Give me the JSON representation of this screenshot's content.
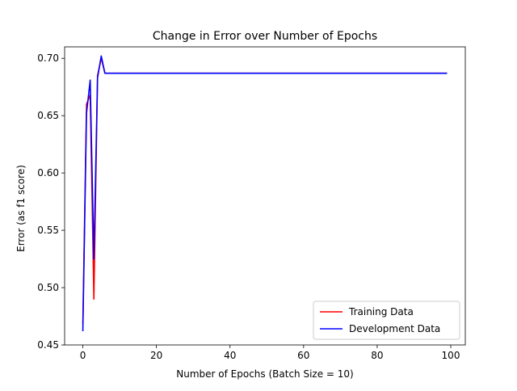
{
  "chart_data": {
    "type": "line",
    "title": "Change in Error over Number of Epochs",
    "xlabel": "Number of Epochs (Batch Size = 10)",
    "ylabel": "Error (as f1 score)",
    "xlim": [
      -4.95,
      103.95
    ],
    "ylim": [
      0.45,
      0.71
    ],
    "xticks": [
      0,
      20,
      40,
      60,
      80,
      100
    ],
    "yticks": [
      0.45,
      0.5,
      0.55,
      0.6,
      0.65,
      0.7
    ],
    "ytick_labels": [
      "0.45",
      "0.50",
      "0.55",
      "0.60",
      "0.65",
      "0.70"
    ],
    "legend_position": "bottom-right",
    "grid": false,
    "series": [
      {
        "name": "Training Data",
        "color": "#ff0000",
        "points": [
          [
            0,
            0.468
          ],
          [
            1,
            0.66
          ],
          [
            2,
            0.668
          ],
          [
            3,
            0.49
          ],
          [
            4,
            0.685
          ],
          [
            5,
            0.7
          ],
          [
            6,
            0.687
          ],
          [
            99,
            0.687
          ]
        ]
      },
      {
        "name": "Development Data",
        "color": "#0000ff",
        "points": [
          [
            0,
            0.462
          ],
          [
            1,
            0.652
          ],
          [
            2,
            0.681
          ],
          [
            3,
            0.525
          ],
          [
            4,
            0.683
          ],
          [
            5,
            0.702
          ],
          [
            6,
            0.687
          ],
          [
            99,
            0.687
          ]
        ]
      }
    ]
  }
}
